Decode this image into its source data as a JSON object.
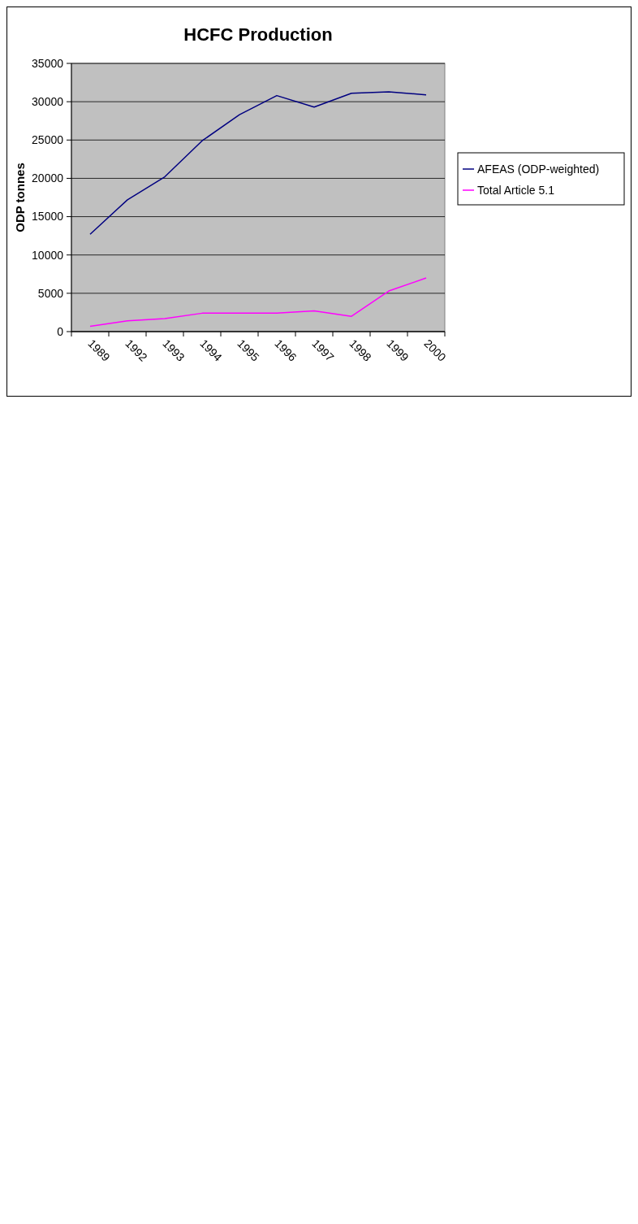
{
  "chart_data": {
    "type": "line",
    "title": "HCFC Production",
    "ylabel": "ODP tonnes",
    "categories": [
      "1989",
      "1992",
      "1993",
      "1994",
      "1995",
      "1996",
      "1997",
      "1998",
      "1999",
      "2000"
    ],
    "series": [
      {
        "name": "AFEAS (ODP-weighted)",
        "color": "#000080",
        "values": [
          12700,
          17200,
          20200,
          24900,
          28300,
          30800,
          29300,
          31100,
          31300,
          30900
        ]
      },
      {
        "name": "Total Article 5.1",
        "color": "#ff00ff",
        "values": [
          700,
          1400,
          1700,
          2400,
          2400,
          2400,
          2700,
          2000,
          5300,
          7000
        ]
      }
    ],
    "ylim": [
      0,
      35000
    ],
    "yticks": [
      0,
      5000,
      10000,
      15000,
      20000,
      25000,
      30000,
      35000
    ],
    "grid": "y",
    "legend": "right",
    "marker": "none",
    "line_style": "solid"
  }
}
